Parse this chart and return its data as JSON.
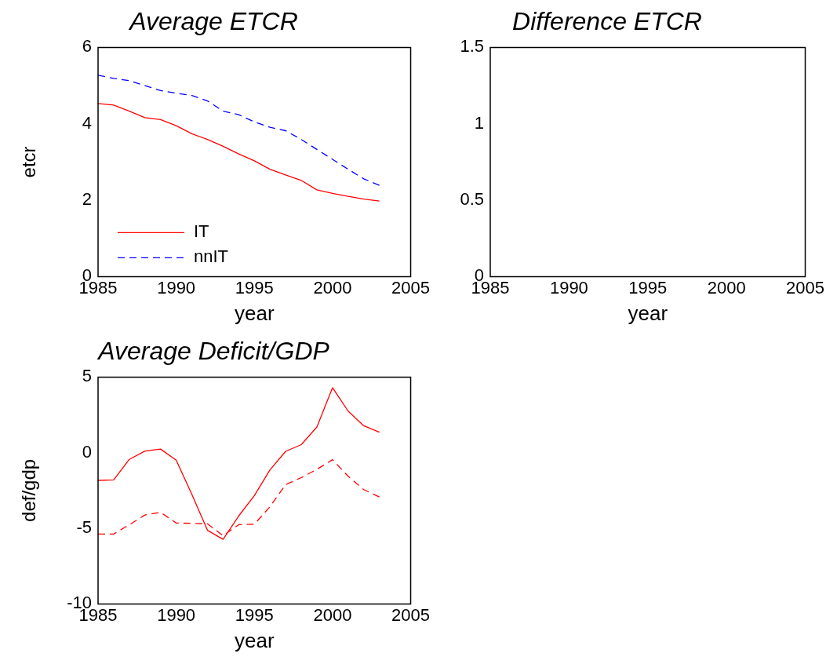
{
  "chart_data": [
    {
      "type": "line",
      "title": "Average ETCR",
      "xlabel": "year",
      "ylabel": "etcr",
      "x": [
        1985,
        1986,
        1987,
        1988,
        1989,
        1990,
        1991,
        1992,
        1993,
        1994,
        1995,
        1996,
        1997,
        1998,
        1999,
        2000,
        2001,
        2002,
        2003
      ],
      "series": [
        {
          "name": "IT",
          "color": "#ff0000",
          "line_style": "solid",
          "values": [
            4.53,
            4.49,
            4.33,
            4.16,
            4.11,
            3.95,
            3.74,
            3.59,
            3.41,
            3.21,
            3.03,
            2.81,
            2.66,
            2.52,
            2.27,
            2.18,
            2.1,
            2.03,
            1.98
          ]
        },
        {
          "name": "nnIT",
          "color": "#0000ff",
          "line_style": "dashed",
          "values": [
            5.27,
            5.19,
            5.13,
            5.0,
            4.87,
            4.8,
            4.74,
            4.6,
            4.33,
            4.24,
            4.05,
            3.91,
            3.82,
            3.59,
            3.33,
            3.07,
            2.81,
            2.56,
            2.39
          ]
        }
      ],
      "xlim": [
        1985,
        2005
      ],
      "xticks": [
        1985,
        1990,
        1995,
        2000,
        2005
      ],
      "ylim": [
        0,
        6
      ],
      "yticks": [
        0,
        2,
        4,
        6
      ],
      "grid": false,
      "legend": "bottom left",
      "marker": "none"
    },
    {
      "type": "line",
      "title": "Difference ETCR",
      "xlabel": "year",
      "xlim": [
        1985,
        2005
      ],
      "xticks": [
        1985,
        1990,
        1995,
        2000,
        2005
      ],
      "ylim": [
        0,
        1.5
      ],
      "yticks": [
        0,
        0.5,
        1,
        1.5
      ],
      "grid": false
    },
    {
      "type": "line",
      "title": "Average Deficit/GDP",
      "xlabel": "year",
      "ylabel": "def/gdp",
      "x": [
        1985,
        1986,
        1987,
        1988,
        1989,
        1990,
        1991,
        1992,
        1993,
        1994,
        1995,
        1996,
        1997,
        1998,
        1999,
        2000,
        2001,
        2002,
        2003
      ],
      "series": [
        {
          "color": "#ff0000",
          "line_style": "solid",
          "values": [
            -1.83,
            -1.8,
            -0.44,
            0.11,
            0.24,
            -0.49,
            -2.75,
            -5.13,
            -5.73,
            -4.18,
            -2.84,
            -1.14,
            0.09,
            0.53,
            1.7,
            4.3,
            2.75,
            1.78,
            1.36
          ]
        },
        {
          "color": "#ff0000",
          "line_style": "dashed",
          "values": [
            -5.38,
            -5.38,
            -4.76,
            -4.12,
            -3.94,
            -4.65,
            -4.67,
            -4.7,
            -5.49,
            -4.76,
            -4.73,
            -3.57,
            -2.11,
            -1.65,
            -1.1,
            -0.46,
            -1.56,
            -2.44,
            -2.93
          ]
        }
      ],
      "xlim": [
        1985,
        2005
      ],
      "xticks": [
        1985,
        1990,
        1995,
        2000,
        2005
      ],
      "ylim": [
        -10,
        5
      ],
      "yticks": [
        -10,
        -5,
        0,
        5
      ],
      "grid": false,
      "marker": "none"
    }
  ]
}
